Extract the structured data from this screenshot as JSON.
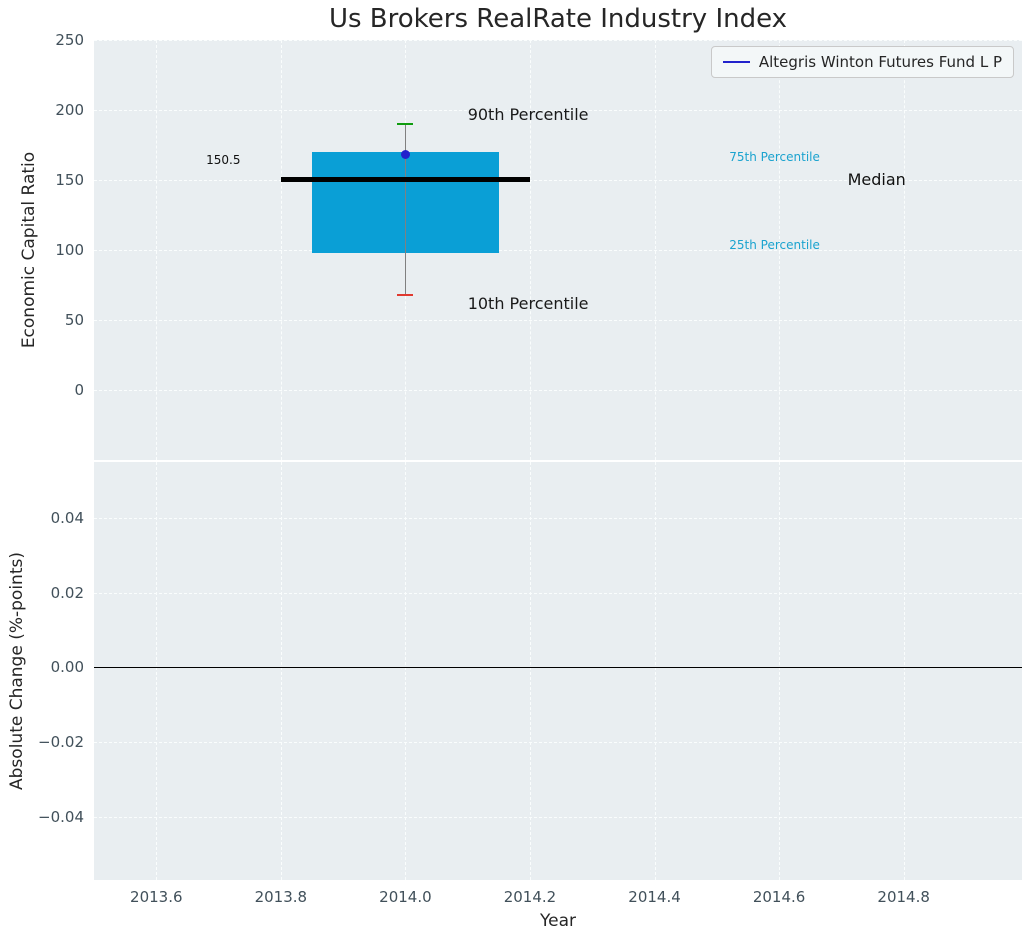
{
  "chart_data": {
    "type": "box",
    "title": "Us Brokers RealRate Industry Index",
    "xlabel": "Year",
    "x_axis": {
      "lim": [
        2013.5,
        2014.99
      ],
      "ticks": [
        2013.6,
        2013.8,
        2014.0,
        2014.2,
        2014.4,
        2014.6,
        2014.8
      ],
      "tick_labels": [
        "2013.6",
        "2013.8",
        "2014.0",
        "2014.2",
        "2014.4",
        "2014.6",
        "2014.8"
      ]
    },
    "top": {
      "ylabel": "Economic Capital Ratio",
      "ylim": [
        -50,
        250
      ],
      "yticks": [
        0,
        50,
        100,
        150,
        200,
        250
      ],
      "ytick_labels": [
        "0",
        "50",
        "100",
        "150",
        "200",
        "250"
      ],
      "box": {
        "x_left": 2013.85,
        "x_right": 2014.15,
        "p25": 98,
        "p75": 170,
        "color": "#0a9fd6"
      },
      "median": {
        "value": 150.5,
        "x_left": 2013.8,
        "x_right": 2014.2,
        "color": "#000000"
      },
      "whisker": {
        "x": 2014.0,
        "p10": 68,
        "p90": 190,
        "line_color": "#808080",
        "cap_top_color": "#0f9c0f",
        "cap_bottom_color": "#e03a30"
      },
      "point": {
        "x": 2014.0,
        "value": 168,
        "color": "#2222cc"
      },
      "annotations": [
        {
          "text": "90th Percentile",
          "x": 2014.1,
          "y": 196,
          "color": "#1a1a1a",
          "size": 16
        },
        {
          "text": "10th Percentile",
          "x": 2014.1,
          "y": 61,
          "color": "#1a1a1a",
          "size": 16
        },
        {
          "text": "75th Percentile",
          "x": 2014.52,
          "y": 166,
          "color": "#1ba3cf",
          "size": 12
        },
        {
          "text": "25th Percentile",
          "x": 2014.52,
          "y": 103,
          "color": "#1ba3cf",
          "size": 12
        },
        {
          "text": "Median",
          "x": 2014.71,
          "y": 150,
          "color": "#111111",
          "size": 16
        },
        {
          "text": "150.5",
          "x": 2013.68,
          "y": 163.5,
          "color": "#111111",
          "size": 12
        }
      ]
    },
    "bottom": {
      "ylabel": "Absolute Change (%-points)",
      "ylim": [
        -0.057,
        0.055
      ],
      "yticks": [
        -0.04,
        -0.02,
        0,
        0.02,
        0.04
      ],
      "ytick_labels": [
        "−0.04",
        "−0.02",
        "0.00",
        "0.02",
        "0.04"
      ],
      "zero_line": 0
    },
    "legend": {
      "label": "Altegris Winton Futures Fund L P",
      "line_color": "#2222cc"
    }
  }
}
